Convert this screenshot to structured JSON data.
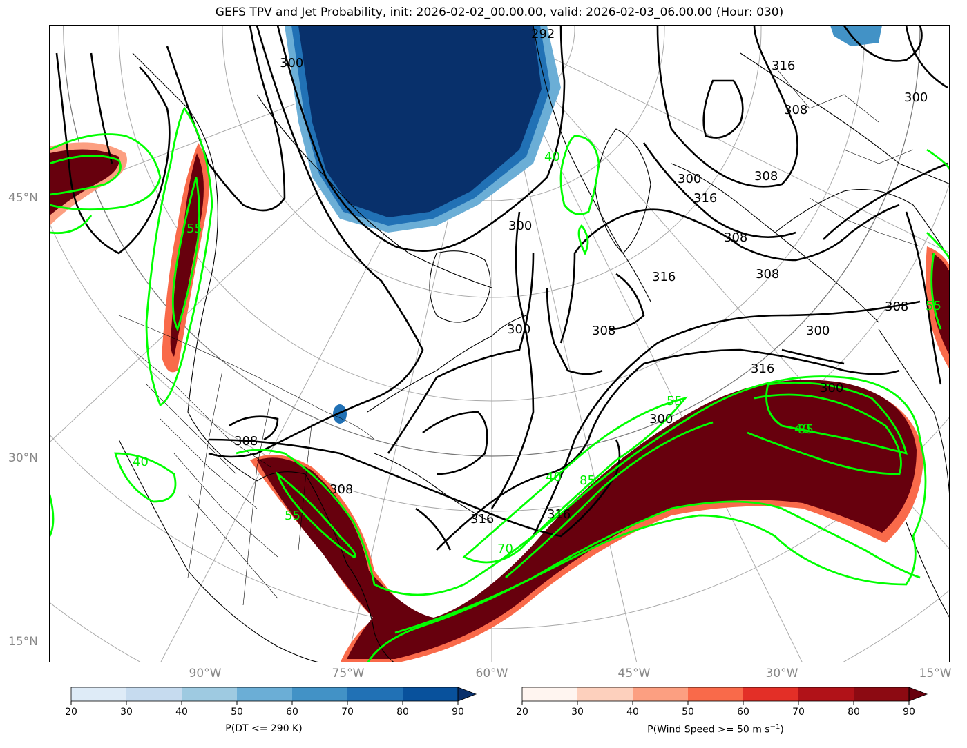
{
  "title": "GEFS TPV and Jet Probability, init: 2026-02-02_00.00.00, valid: 2026-02-03_06.00.00 (Hour: 030)",
  "lat_labels": [
    "45°N",
    "30°N",
    "15°N"
  ],
  "lon_labels": [
    "90°W",
    "75°W",
    "60°W",
    "45°W",
    "30°W",
    "15°W"
  ],
  "contour_labels": {
    "theta": [
      "292",
      "316",
      "308",
      "300",
      "300",
      "308",
      "316",
      "300",
      "308",
      "300",
      "300",
      "308",
      "300",
      "308",
      "316",
      "316",
      "300",
      "308",
      "300",
      "308",
      "316",
      "316",
      "308"
    ],
    "jet": [
      "40",
      "40",
      "55",
      "40",
      "55",
      "85",
      "40",
      "85",
      "70",
      "55",
      "55"
    ]
  },
  "colorbars": {
    "dt": {
      "label": "P(DT <= 290 K)",
      "ticks": [
        "20",
        "30",
        "40",
        "50",
        "60",
        "70",
        "80",
        "90"
      ],
      "colors": [
        "#deebf7",
        "#c6dbef",
        "#9ecae1",
        "#6baed6",
        "#4292c6",
        "#2171b5",
        "#08519c",
        "#08306b"
      ]
    },
    "wind": {
      "label": "P(Wind Speed >= 50 m s",
      "label_sup": "−1",
      "label_end": ")",
      "ticks": [
        "20",
        "30",
        "40",
        "50",
        "60",
        "70",
        "80",
        "90"
      ],
      "colors": [
        "#fff5f0",
        "#fdd0bd",
        "#fc9f81",
        "#f96a4a",
        "#e32f27",
        "#b11218",
        "#8c0a12",
        "#67000d"
      ]
    }
  },
  "colors": {
    "jet_contour": "#00ff00",
    "theta_contour": "#000000",
    "coast": "#000000",
    "grid": "#aaaaaa"
  }
}
